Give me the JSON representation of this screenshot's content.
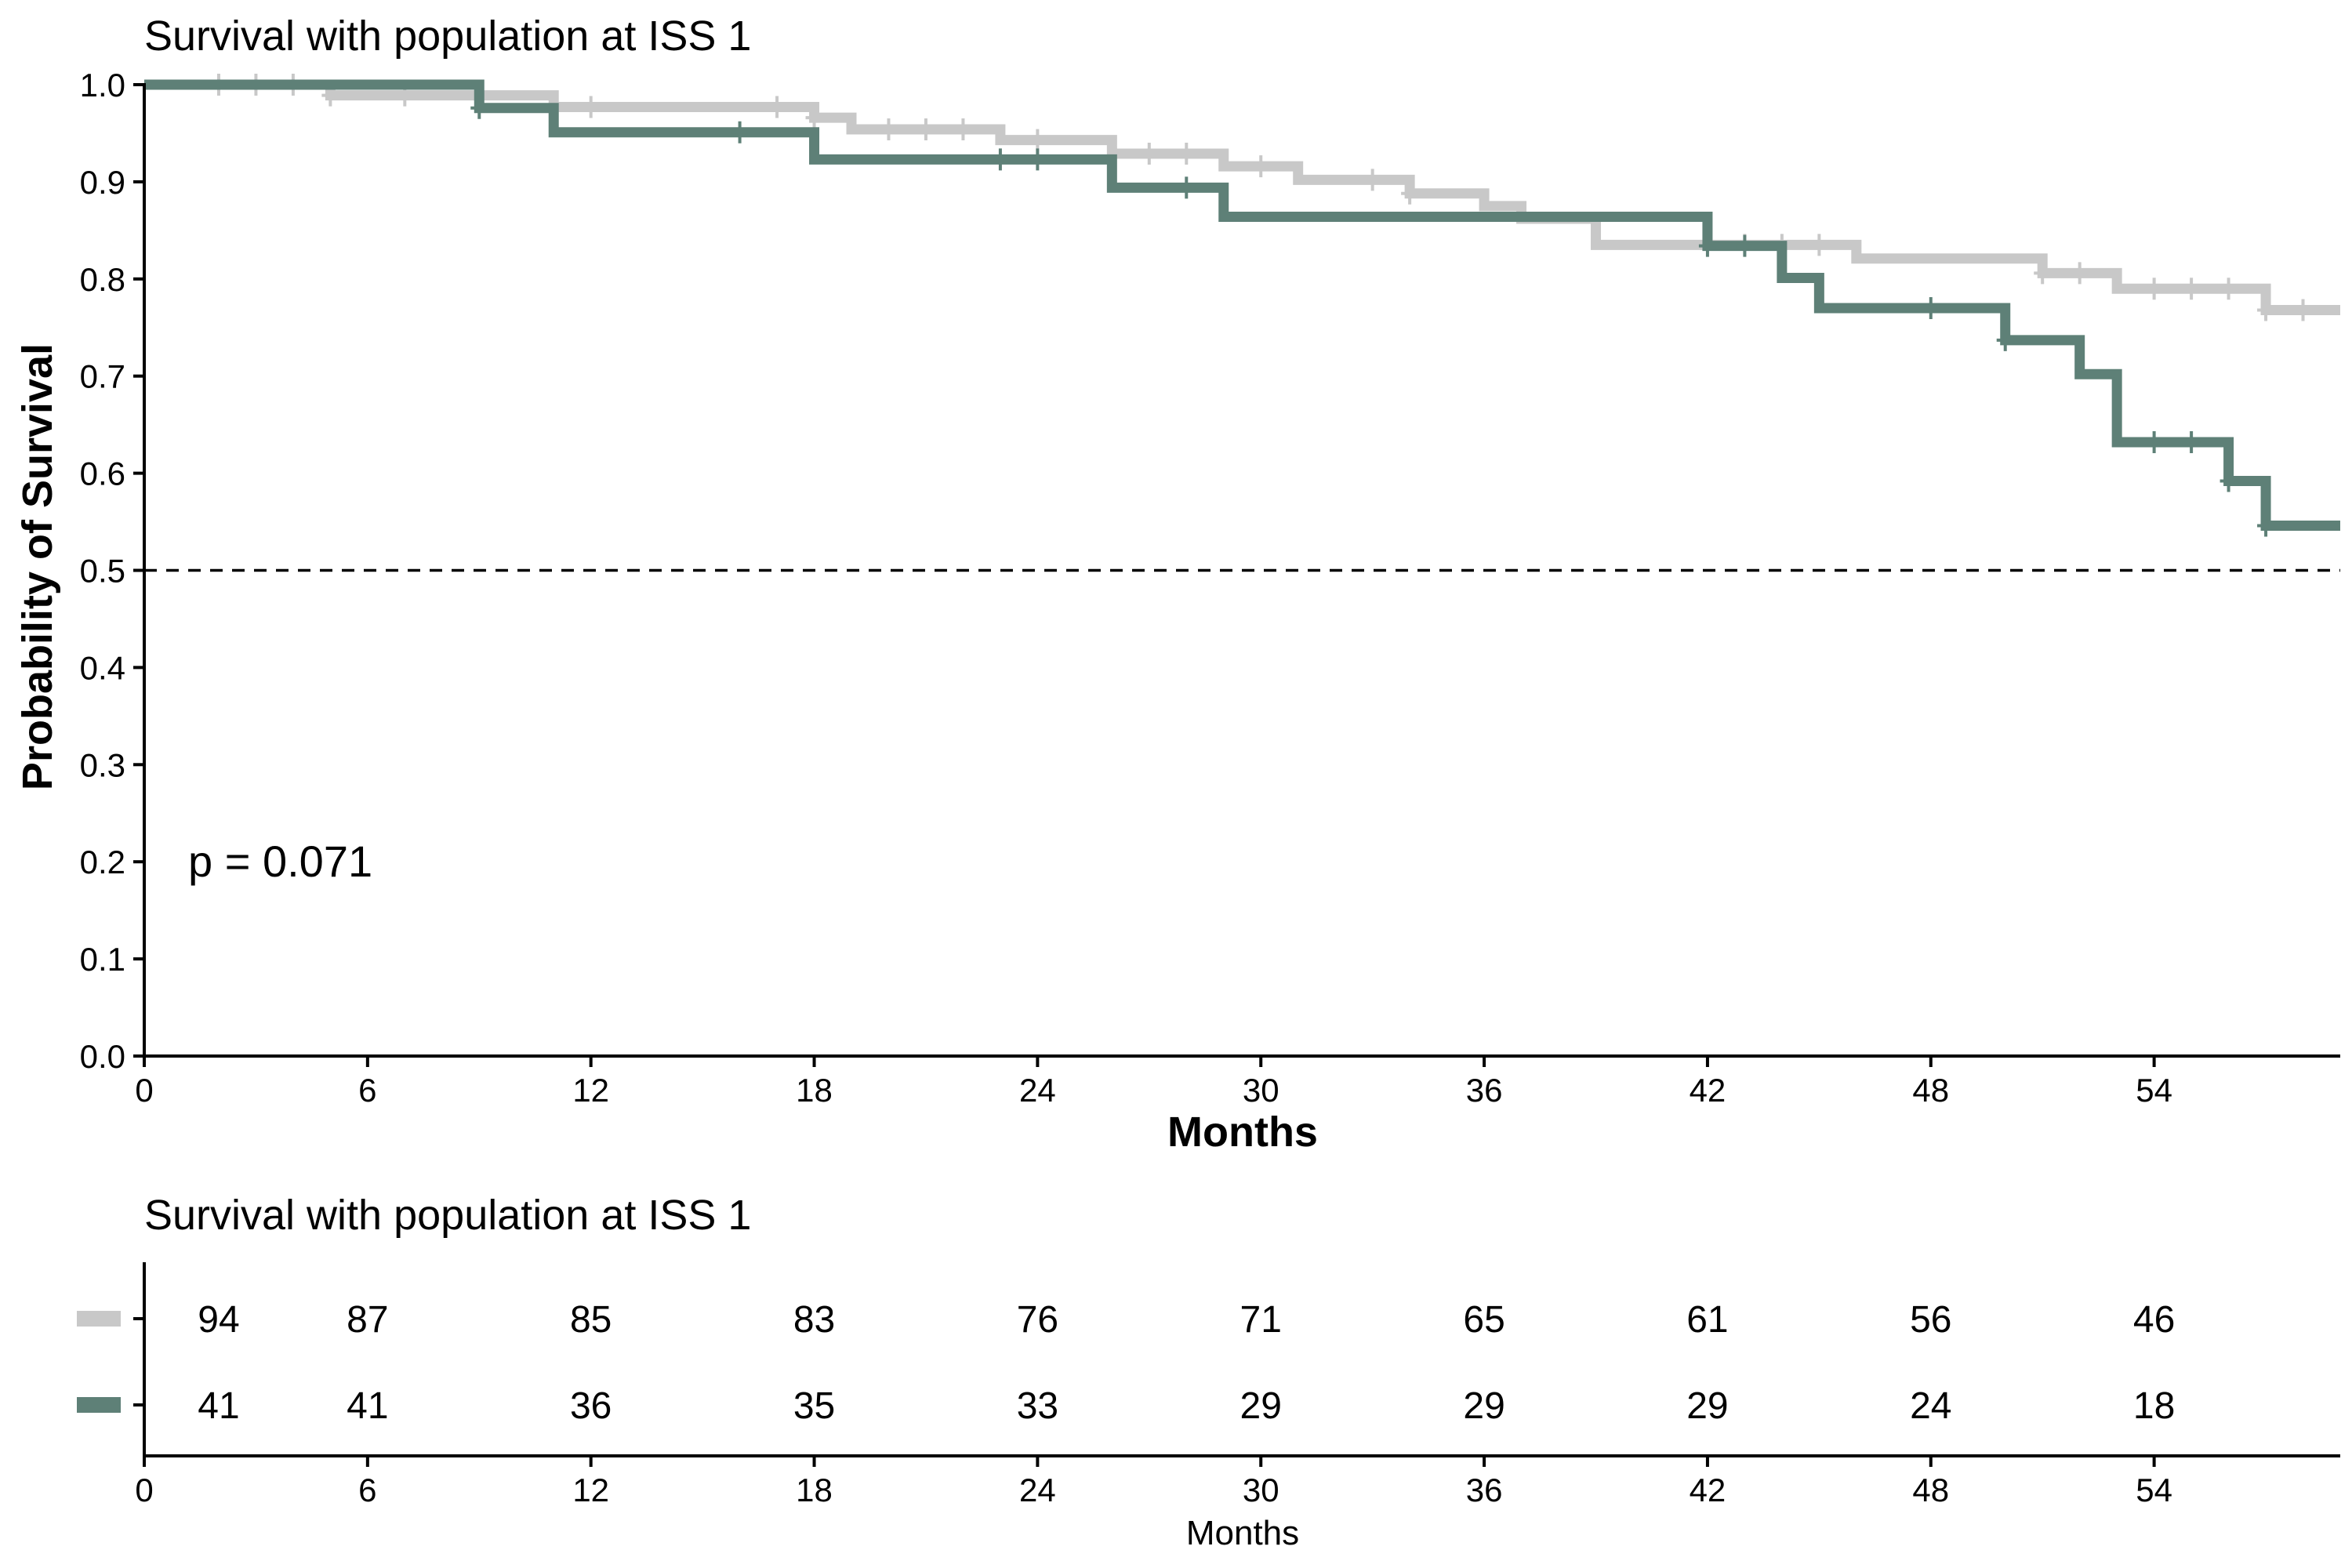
{
  "colors": {
    "series_a": "#C8C8C8",
    "series_b": "#5E8077",
    "axis": "#000000",
    "reference_line": "#000000"
  },
  "chart_data": [
    {
      "type": "line",
      "subtype": "kaplan-meier-step",
      "title": "Survival with population at ISS 1",
      "xlabel": "Months",
      "ylabel": "Probability of Survival",
      "xlim": [
        0,
        59
      ],
      "ylim": [
        0.0,
        1.0
      ],
      "x_ticks": [
        0,
        6,
        12,
        18,
        24,
        30,
        36,
        42,
        48,
        54
      ],
      "x_tick_labels": [
        "0",
        "6",
        "12",
        "18",
        "24",
        "30",
        "36",
        "42",
        "48",
        "54"
      ],
      "y_ticks": [
        0.0,
        0.1,
        0.2,
        0.3,
        0.4,
        0.5,
        0.6,
        0.7,
        0.8,
        0.9,
        1.0
      ],
      "y_tick_labels": [
        "0.0",
        "0.1",
        "0.2",
        "0.3",
        "0.4",
        "0.5",
        "0.6",
        "0.7",
        "0.8",
        "0.9",
        "1.0"
      ],
      "grid": false,
      "legend": "none",
      "reference_line": {
        "y": 0.5,
        "style": "dashed"
      },
      "annotation": "p = 0.071",
      "series": [
        {
          "color_key": "series_a",
          "steps": [
            [
              0,
              1.0
            ],
            [
              5,
              0.989
            ],
            [
              11,
              0.977
            ],
            [
              18,
              0.966
            ],
            [
              19,
              0.954
            ],
            [
              23,
              0.943
            ],
            [
              26,
              0.929
            ],
            [
              29,
              0.916
            ],
            [
              31,
              0.902
            ],
            [
              34,
              0.888
            ],
            [
              36,
              0.875
            ],
            [
              37,
              0.862
            ],
            [
              39,
              0.835
            ],
            [
              46,
              0.821
            ],
            [
              51,
              0.806
            ],
            [
              53,
              0.79
            ],
            [
              57,
              0.768
            ],
            [
              59,
              0.768
            ]
          ],
          "censor_x": [
            2,
            3,
            4,
            5,
            7,
            12,
            17,
            18,
            20,
            21,
            22,
            24,
            27,
            28,
            30,
            33,
            34,
            43,
            44,
            45,
            51,
            52,
            54,
            55,
            56,
            57,
            58
          ]
        },
        {
          "color_key": "series_b",
          "steps": [
            [
              0,
              1.0
            ],
            [
              9,
              0.976
            ],
            [
              11,
              0.951
            ],
            [
              18,
              0.923
            ],
            [
              26,
              0.894
            ],
            [
              29,
              0.864
            ],
            [
              42,
              0.834
            ],
            [
              44,
              0.801
            ],
            [
              45,
              0.77
            ],
            [
              50,
              0.737
            ],
            [
              52,
              0.702
            ],
            [
              53,
              0.632
            ],
            [
              56,
              0.592
            ],
            [
              57,
              0.546
            ],
            [
              59,
              0.546
            ]
          ],
          "censor_x": [
            9,
            16,
            23,
            24,
            28,
            42,
            43,
            48,
            50,
            54,
            55,
            56,
            57
          ]
        }
      ]
    },
    {
      "type": "table",
      "title": "Survival with population at ISS 1",
      "xlabel": "Months",
      "xlim": [
        0,
        59
      ],
      "x_ticks": [
        0,
        6,
        12,
        18,
        24,
        30,
        36,
        42,
        48,
        54
      ],
      "x_tick_labels": [
        "0",
        "6",
        "12",
        "18",
        "24",
        "30",
        "36",
        "42",
        "48",
        "54"
      ],
      "value_x": [
        2,
        6,
        12,
        18,
        24,
        30,
        36,
        42,
        48,
        54
      ],
      "rows": [
        {
          "color_key": "series_a",
          "values": [
            "94",
            "87",
            "85",
            "83",
            "76",
            "71",
            "65",
            "61",
            "56",
            "46"
          ]
        },
        {
          "color_key": "series_b",
          "values": [
            "41",
            "41",
            "36",
            "35",
            "33",
            "29",
            "29",
            "29",
            "24",
            "18"
          ]
        }
      ]
    }
  ]
}
